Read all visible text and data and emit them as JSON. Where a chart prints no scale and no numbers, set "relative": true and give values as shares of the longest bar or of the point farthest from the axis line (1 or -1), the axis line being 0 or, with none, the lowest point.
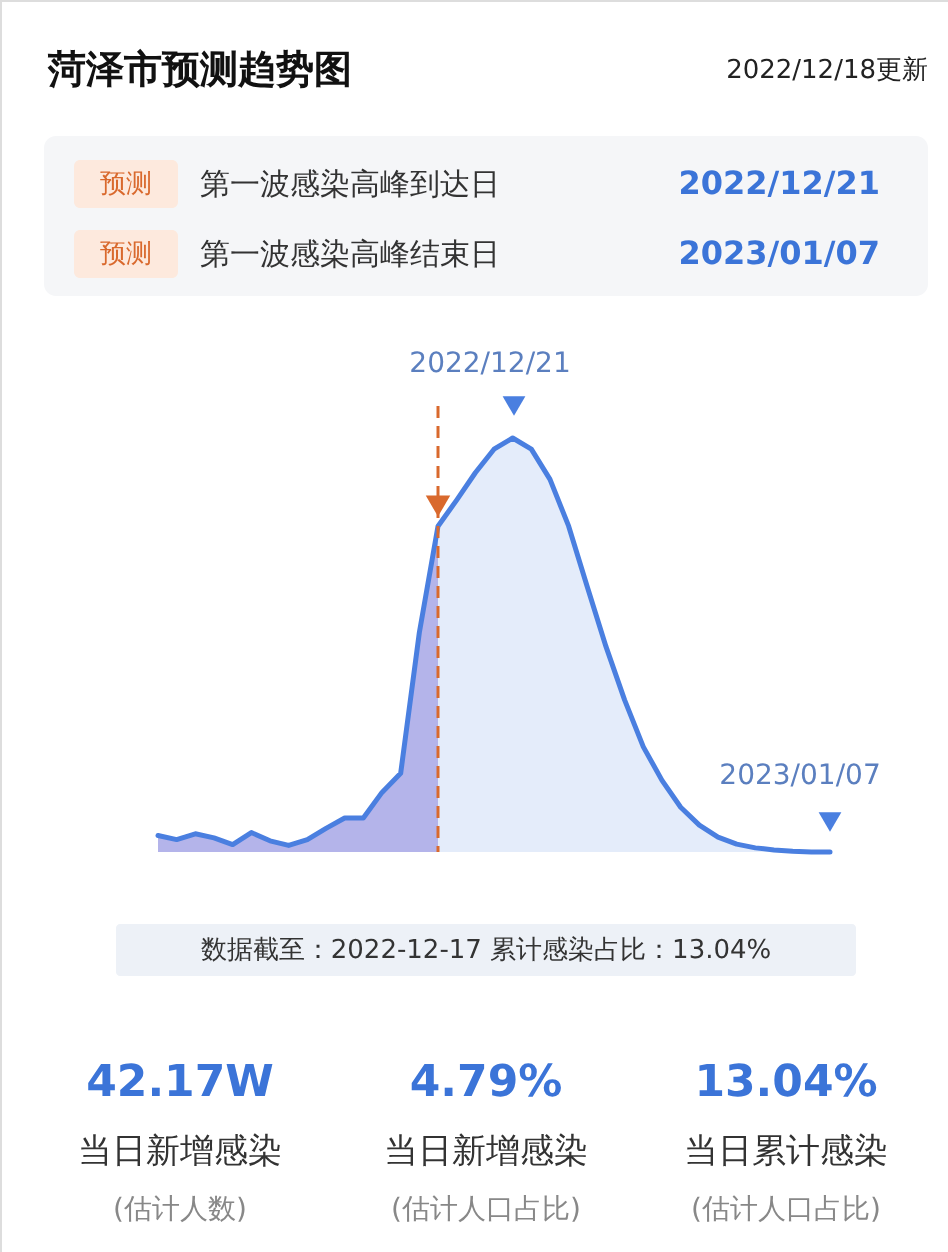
{
  "chart_data": {
    "type": "area",
    "title": "菏泽市预测趋势图",
    "subtitle": "2022/12/18更新",
    "relative": true,
    "categories": [
      null,
      null,
      null,
      null,
      null,
      null,
      null,
      null,
      null,
      null,
      null,
      null,
      null,
      null,
      null,
      null,
      null,
      null,
      null,
      null,
      null,
      null,
      null,
      null,
      null,
      null,
      null,
      null,
      null,
      null,
      null,
      null,
      null,
      null,
      null,
      null,
      null
    ],
    "series": [
      {
        "color": "#4a7fe0",
        "line_style": "solid",
        "values": [
          0.04,
          0.03,
          0.044,
          0.034,
          0.018,
          0.047,
          0.027,
          0.016,
          0.03,
          0.057,
          0.082,
          0.082,
          0.144,
          0.19,
          0.53,
          0.787,
          0.85,
          0.916,
          0.973,
          1.0,
          0.973,
          0.9,
          0.787,
          0.64,
          0.496,
          0.367,
          0.254,
          0.173,
          0.108,
          0.065,
          0.036,
          0.019,
          0.01,
          0.005,
          0.002,
          0,
          0
        ]
      }
    ],
    "annotations": [
      "2022/12/21",
      "2023/01/07",
      "预测",
      "第一波感染高峰到达日",
      "2022/12/21",
      "预测",
      "第一波感染高峰结束日",
      "2023/01/07",
      "数据截至：2022-12-17   累计感染占比：13.04%",
      "42.17W",
      "当日新增感染",
      "(估计人数)",
      "4.79%",
      "当日新增感染",
      "(估计人口占比)",
      "13.04%",
      "当日累计感染",
      "(估计人口占比)"
    ]
  }
}
